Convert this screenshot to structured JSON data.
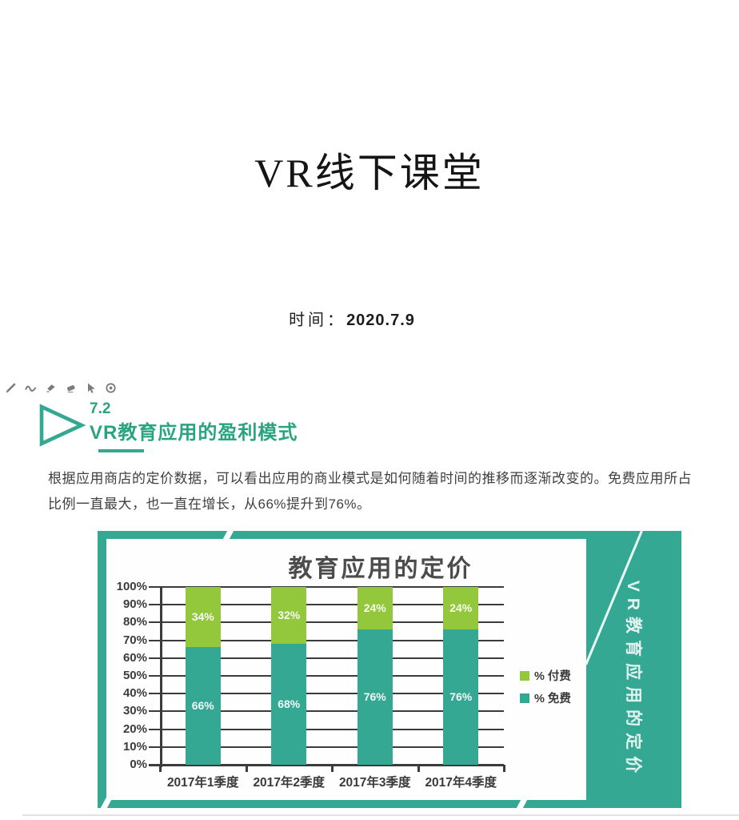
{
  "page": {
    "title": "VR线下课堂",
    "time_label": "时间：",
    "time_value": "2020.7.9"
  },
  "section": {
    "number": "7.2",
    "heading": "VR教育应用的盈利模式",
    "paragraph_line1": "根据应用商店的定价数据，可以看出应用的商业模式是如何随着时间的推移而逐渐改变的。免费应用所占",
    "paragraph_line2": "比例一直最大，也一直在增长，从66%提升到76%。"
  },
  "side_panel": {
    "label": "VR教育应用的定价"
  },
  "colors": {
    "frame_teal": "#35a894",
    "heading_green": "#2aa47f",
    "paid_green": "#93c73c",
    "free_teal": "#35a894",
    "axis_dark": "#3b3b3b"
  },
  "chart_data": {
    "type": "bar",
    "stacked": true,
    "title": "教育应用的定价",
    "categories": [
      "2017年1季度",
      "2017年2季度",
      "2017年3季度",
      "2017年4季度"
    ],
    "series": [
      {
        "name": "% 付费",
        "color": "#93c73c",
        "values": [
          34,
          32,
          24,
          24
        ]
      },
      {
        "name": "% 免费",
        "color": "#35a894",
        "values": [
          66,
          68,
          76,
          76
        ]
      }
    ],
    "ylim": [
      0,
      100
    ],
    "ytick_step": 10,
    "ytick_labels": [
      "100%",
      "90%",
      "80%",
      "70%",
      "60%",
      "50%",
      "40%",
      "30%",
      "20%",
      "10%",
      "0%"
    ],
    "grid": true,
    "bar_value_suffix": "%",
    "legend_position": "right"
  }
}
